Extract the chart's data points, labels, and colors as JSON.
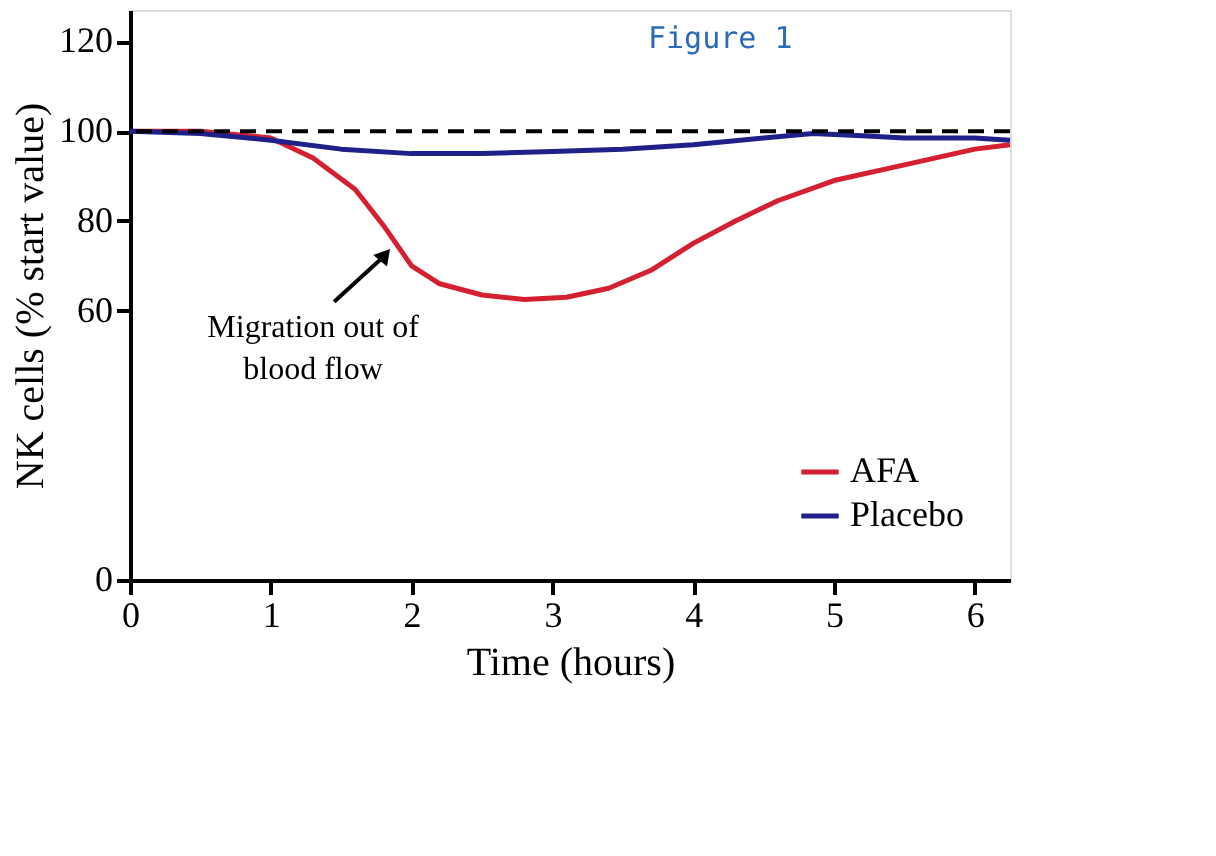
{
  "chart_data": {
    "type": "line",
    "title": "Figure 1",
    "xlabel": "Time (hours)",
    "ylabel": "NK cells (% start value)",
    "xlim": [
      0,
      6.25
    ],
    "xticks": [
      0,
      1,
      2,
      3,
      4,
      5,
      6
    ],
    "ylim": [
      0,
      127
    ],
    "yticks": [
      0,
      60,
      80,
      100,
      120
    ],
    "grid": false,
    "legend": "bottom right",
    "line_style": "solid",
    "marker": "none",
    "series": [
      {
        "name": "AFA",
        "color": "#d42030",
        "x": [
          0,
          0.5,
          1,
          1.3,
          1.6,
          1.8,
          2,
          2.2,
          2.5,
          2.8,
          3.1,
          3.4,
          3.7,
          4,
          4.3,
          4.6,
          5,
          5.5,
          6,
          6.25
        ],
        "values": [
          100,
          100,
          98.5,
          94,
          87,
          79,
          70,
          66,
          63.5,
          62.5,
          63,
          65,
          69,
          75,
          80,
          84.5,
          89,
          92.5,
          96,
          97
        ]
      },
      {
        "name": "Placebo",
        "color": "#20208a",
        "x": [
          0,
          0.5,
          1,
          1.5,
          2,
          2.5,
          3,
          3.5,
          4,
          4.5,
          4.85,
          5.2,
          5.5,
          6,
          6.25
        ],
        "values": [
          100,
          99.5,
          98,
          96,
          95,
          95,
          95.5,
          96,
          97,
          98.5,
          99.5,
          99,
          98.5,
          98.5,
          98
        ]
      }
    ],
    "ref_lines": [
      {
        "axis": "y",
        "value": 100,
        "label": null,
        "color": "#000000",
        "line_style": "dashed"
      }
    ],
    "annotations": [
      {
        "text": "Migration out of blood flow",
        "x": 1.8,
        "y": 72
      }
    ]
  }
}
